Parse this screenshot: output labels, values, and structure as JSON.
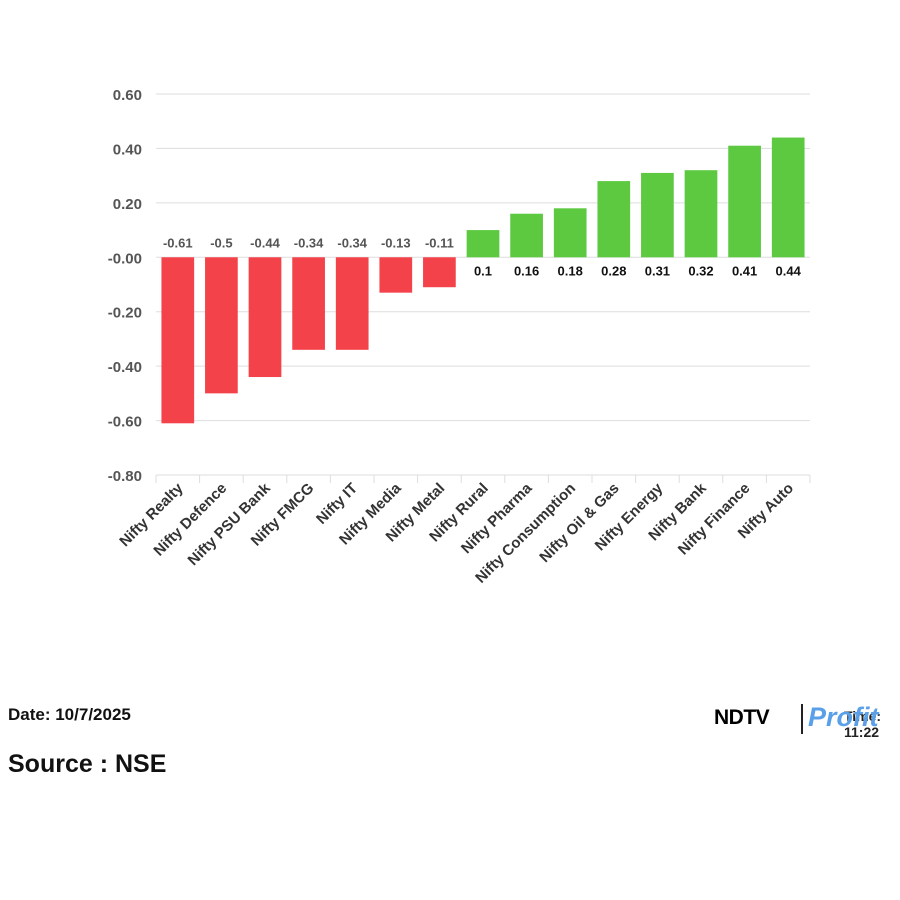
{
  "chart_data": {
    "type": "bar",
    "categories": [
      "Nifty Realty",
      "Nifty Defence",
      "Nifty PSU Bank",
      "Nifty FMCG",
      "Nifty IT",
      "Nifty Media",
      "Nifty Metal",
      "Nifty Rural",
      "Nifty Pharma",
      "Nifty Consumption",
      "Nifty Oil & Gas",
      "Nifty Energy",
      "Nifty Bank",
      "Nifty Finance",
      "Nifty Auto"
    ],
    "values": [
      -0.61,
      -0.5,
      -0.44,
      -0.34,
      -0.34,
      -0.13,
      -0.11,
      0.1,
      0.16,
      0.18,
      0.28,
      0.31,
      0.32,
      0.41,
      0.44
    ],
    "data_labels": [
      "-0.61",
      "-0.5",
      "-0.44",
      "-0.34",
      "-0.34",
      "-0.13",
      "-0.11",
      "0.1",
      "0.16",
      "0.18",
      "0.28",
      "0.31",
      "0.32",
      "0.41",
      "0.44"
    ],
    "yticks": [
      0.6,
      0.4,
      0.2,
      0.0,
      -0.2,
      -0.4,
      -0.6,
      -0.8
    ],
    "ytick_labels": [
      "0.60",
      "0.40",
      "0.20",
      "-0.00",
      "-0.20",
      "-0.40",
      "-0.60",
      "-0.80"
    ],
    "ylim": [
      -0.8,
      0.6
    ],
    "title": "",
    "xlabel": "",
    "ylabel": "",
    "grid": true,
    "legend": "none",
    "colors": {
      "negative": "#f4424b",
      "positive": "#5cc940",
      "grid": "#dddddd",
      "tick_text": "#555555",
      "label_text": "#333333"
    }
  },
  "footer": {
    "date": "Date: 10/7/2025",
    "source": "Source : NSE"
  },
  "brand": {
    "ndtv": "NDTV",
    "profit": "Profit",
    "time": "Time: 11:22",
    "profit_color": "#5aa0e8"
  }
}
